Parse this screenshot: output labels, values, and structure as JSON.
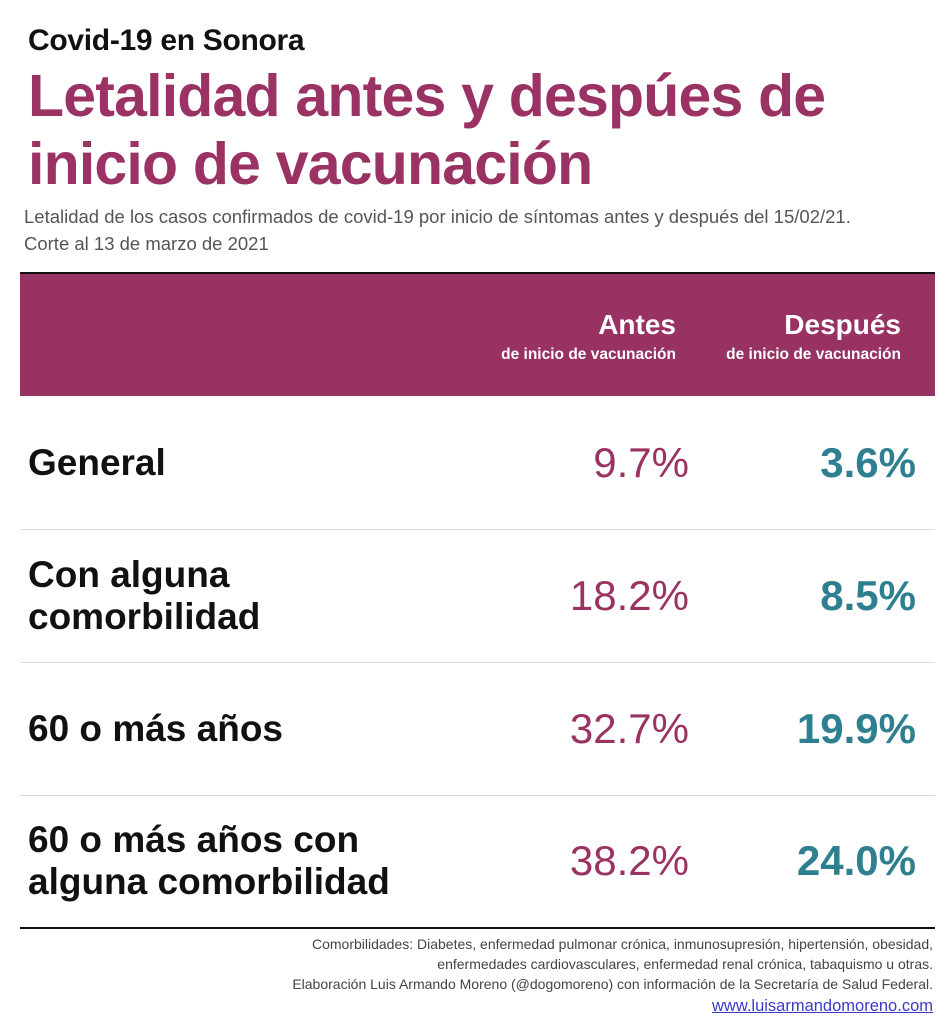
{
  "header": {
    "kicker": "Covid-19 en Sonora",
    "title": "Letalidad antes y despúes de inicio de vacunación",
    "subtitle_line1": "Letalidad de los casos confirmados de covid-19 por inicio de síntomas antes y después del 15/02/21.",
    "subtitle_line2": "Corte al 13 de marzo de 2021"
  },
  "chart_data": {
    "type": "table",
    "columns": [
      {
        "name": "Antes",
        "subtitle": "de inicio de vacunación"
      },
      {
        "name": "Después",
        "subtitle": "de inicio de vacunación"
      }
    ],
    "rows": [
      {
        "label_lines": [
          "General"
        ],
        "antes": "9.7%",
        "despues": "3.6%"
      },
      {
        "label_lines": [
          "Con alguna",
          "comorbilidad"
        ],
        "antes": "18.2%",
        "despues": "8.5%"
      },
      {
        "label_lines": [
          "60 o más años"
        ],
        "antes": "32.7%",
        "despues": "19.9%"
      },
      {
        "label_lines": [
          "60 o más años con",
          "alguna comorbilidad"
        ],
        "antes": "38.2%",
        "despues": "24.0%"
      }
    ],
    "colors": {
      "antes": "#9a3263",
      "despues": "#2e7f90",
      "header_band": "#973262"
    }
  },
  "footer": {
    "line1": "Comorbilidades: Diabetes, enfermedad pulmonar crónica, inmunosupresión, hipertensión, obesidad,",
    "line2": "enfermedades cardiovasculares,  enfermedad renal crónica, tabaquismo u otras.",
    "line3": "Elaboración Luis Armando Moreno (@dogomoreno) con información de la Secretaría de Salud Federal.",
    "link": "www.luisarmandomoreno.com"
  }
}
